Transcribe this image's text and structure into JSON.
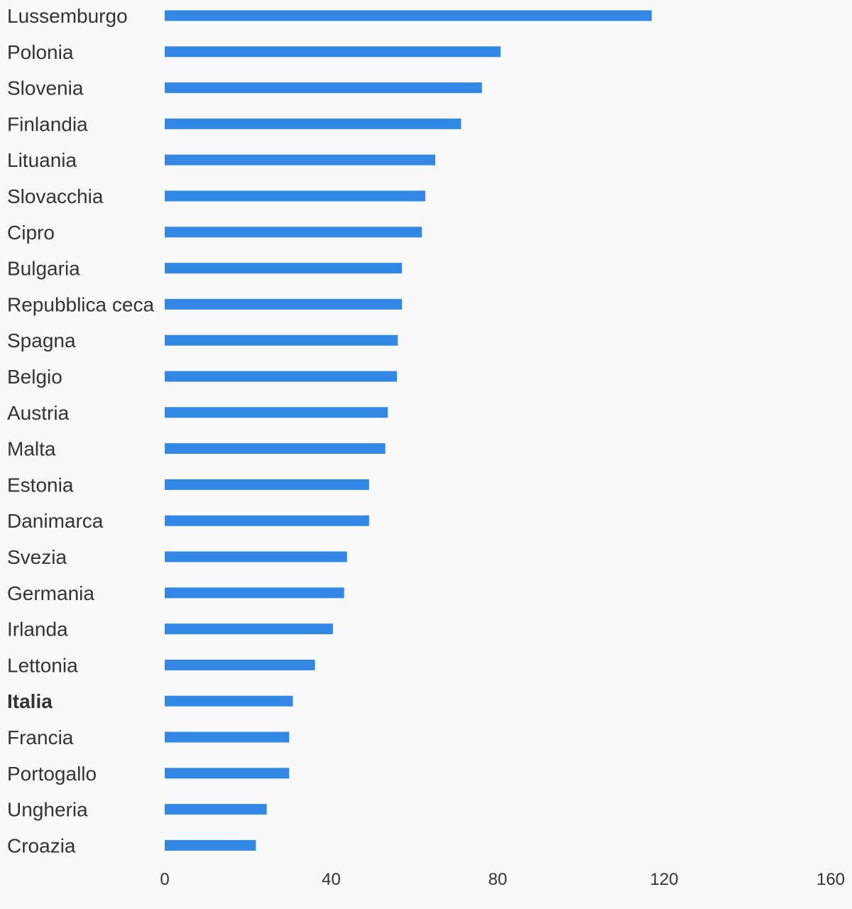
{
  "chart_data": {
    "type": "bar",
    "orientation": "horizontal",
    "categories": [
      "Lussemburgo",
      "Polonia",
      "Slovenia",
      "Finlandia",
      "Lituania",
      "Slovacchia",
      "Cipro",
      "Bulgaria",
      "Repubblica ceca",
      "Spagna",
      "Belgio",
      "Austria",
      "Malta",
      "Estonia",
      "Danimarca",
      "Svezia",
      "Germania",
      "Irlanda",
      "Lettonia",
      "Italia",
      "Francia",
      "Portogallo",
      "Ungheria",
      "Croazia"
    ],
    "values": [
      117,
      80.7,
      76.2,
      71.2,
      65,
      62.6,
      61.8,
      57,
      57,
      56,
      55.8,
      53.6,
      53,
      49.1,
      49.1,
      43.8,
      43.1,
      40.4,
      36.1,
      30.8,
      29.9,
      29.9,
      24.5,
      21.9
    ],
    "highlight": "Italia",
    "xlim": [
      0,
      160
    ],
    "xticks": [
      0,
      40,
      80,
      120,
      160
    ],
    "title": "",
    "xlabel": "",
    "ylabel": "",
    "grid": false,
    "bar_color": "#3388e6",
    "background_color": "#f9f9f9"
  }
}
